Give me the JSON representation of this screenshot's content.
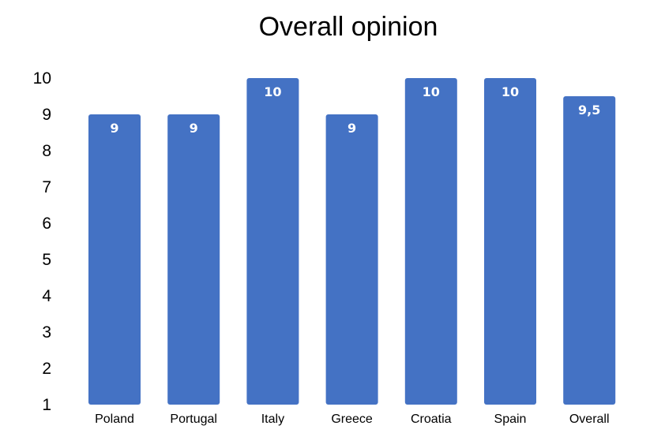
{
  "chart_data": {
    "type": "bar",
    "title": "Overall opinion",
    "xlabel": "",
    "ylabel": "",
    "categories": [
      "Poland",
      "Portugal",
      "Italy",
      "Greece",
      "Croatia",
      "Spain",
      "Overall"
    ],
    "values": [
      9,
      9,
      10,
      9,
      10,
      10,
      9.5
    ],
    "data_labels": [
      "9",
      "9",
      "10",
      "9",
      "10",
      "10",
      "9,5"
    ],
    "ylim": [
      1,
      10
    ],
    "yticks": [
      "1",
      "2",
      "3",
      "4",
      "5",
      "6",
      "7",
      "8",
      "9",
      "10"
    ],
    "grid": false,
    "legend": "none",
    "bar_color": "#4472C4",
    "label_color": "#FFFFFF",
    "text_color": "#000000"
  }
}
